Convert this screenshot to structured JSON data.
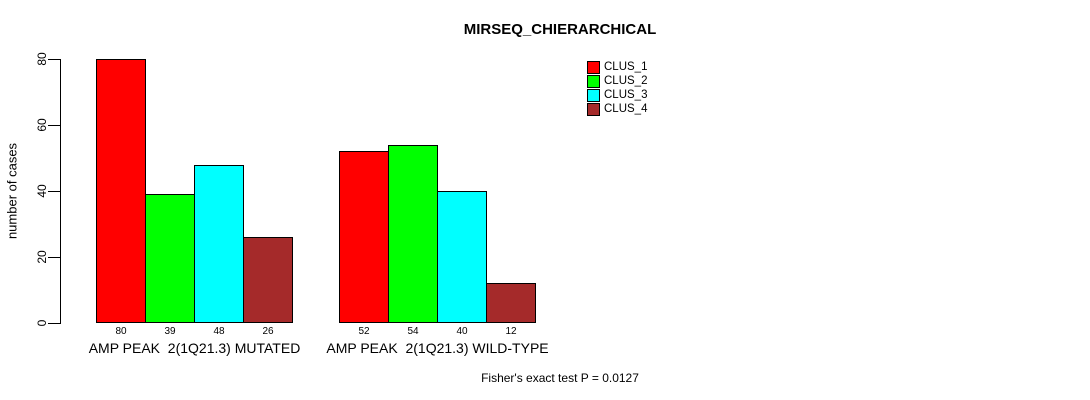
{
  "chart_data": {
    "type": "bar",
    "title": "MIRSEQ_CHIERARCHICAL",
    "ylabel": "number of cases",
    "xlabel": "",
    "annotation": "Fisher's exact test P = 0.0127",
    "categories": [
      "AMP PEAK  2(1Q21.3) MUTATED",
      "AMP PEAK  2(1Q21.3) WILD-TYPE"
    ],
    "series": [
      {
        "name": "CLUS_1",
        "color": "#ff0000",
        "values": [
          80,
          52
        ]
      },
      {
        "name": "CLUS_2",
        "color": "#00ff00",
        "values": [
          39,
          54
        ]
      },
      {
        "name": "CLUS_3",
        "color": "#00ffff",
        "values": [
          48,
          40
        ]
      },
      {
        "name": "CLUS_4",
        "color": "#a52a2a",
        "values": [
          26,
          12
        ]
      }
    ],
    "yticks": [
      0,
      20,
      40,
      60,
      80
    ],
    "ylim": [
      0,
      80
    ],
    "grid": false,
    "legend_position": "top-right-inside",
    "bar_edge_color": "#000000",
    "background_color": "#ffffff",
    "bar_value_labels_shown": true
  }
}
